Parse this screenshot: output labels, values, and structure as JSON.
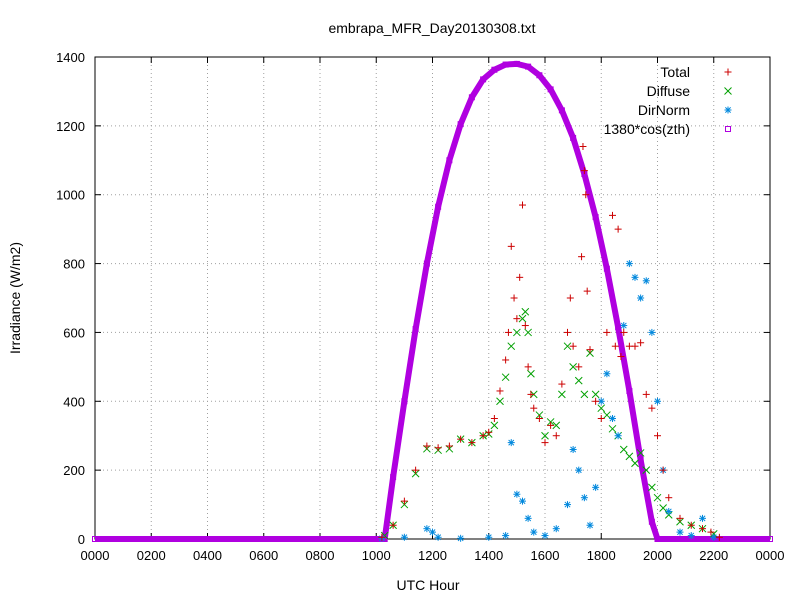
{
  "chart_data": {
    "type": "scatter",
    "title": "embrapa_MFR_Day20130308.txt",
    "xlabel": "UTC Hour",
    "ylabel": "Irradiance (W/m2)",
    "xlim": [
      0,
      24
    ],
    "ylim": [
      0,
      1400
    ],
    "x_tick_values": [
      0,
      2,
      4,
      6,
      8,
      10,
      12,
      14,
      16,
      18,
      20,
      22,
      24
    ],
    "x_tick_labels": [
      "0000",
      "0200",
      "0400",
      "0600",
      "0800",
      "1000",
      "1200",
      "1400",
      "1600",
      "1800",
      "2000",
      "2200",
      "0000"
    ],
    "y_tick_values": [
      0,
      200,
      400,
      600,
      800,
      1000,
      1200,
      1400
    ],
    "y_tick_labels": [
      "0",
      "200",
      "400",
      "600",
      "800",
      "1000",
      "1200",
      "1400"
    ],
    "grid": true,
    "legend_position": "top-right",
    "series": [
      {
        "name": "Total",
        "color": "#cc0000",
        "marker": "plus",
        "points": [
          [
            10.2,
            5
          ],
          [
            10.6,
            40
          ],
          [
            11.0,
            110
          ],
          [
            11.4,
            200
          ],
          [
            11.8,
            270
          ],
          [
            12.2,
            265
          ],
          [
            12.6,
            270
          ],
          [
            13.0,
            290
          ],
          [
            13.4,
            280
          ],
          [
            13.8,
            300
          ],
          [
            14.0,
            310
          ],
          [
            14.2,
            350
          ],
          [
            14.4,
            430
          ],
          [
            14.6,
            520
          ],
          [
            14.7,
            600
          ],
          [
            14.8,
            850
          ],
          [
            14.9,
            700
          ],
          [
            15.0,
            640
          ],
          [
            15.1,
            760
          ],
          [
            15.2,
            970
          ],
          [
            15.3,
            620
          ],
          [
            15.4,
            500
          ],
          [
            15.5,
            420
          ],
          [
            15.6,
            380
          ],
          [
            15.8,
            350
          ],
          [
            16.0,
            280
          ],
          [
            16.2,
            330
          ],
          [
            16.4,
            300
          ],
          [
            16.6,
            450
          ],
          [
            16.8,
            600
          ],
          [
            16.9,
            700
          ],
          [
            17.0,
            560
          ],
          [
            17.2,
            500
          ],
          [
            17.3,
            820
          ],
          [
            17.35,
            1140
          ],
          [
            17.4,
            1070
          ],
          [
            17.45,
            1000
          ],
          [
            17.5,
            720
          ],
          [
            17.6,
            550
          ],
          [
            17.8,
            400
          ],
          [
            18.0,
            350
          ],
          [
            18.2,
            600
          ],
          [
            18.4,
            940
          ],
          [
            18.5,
            560
          ],
          [
            18.6,
            900
          ],
          [
            18.7,
            530
          ],
          [
            18.8,
            600
          ],
          [
            19.0,
            560
          ],
          [
            19.2,
            560
          ],
          [
            19.4,
            570
          ],
          [
            19.6,
            420
          ],
          [
            19.8,
            380
          ],
          [
            20.0,
            300
          ],
          [
            20.2,
            200
          ],
          [
            20.4,
            120
          ],
          [
            20.8,
            60
          ],
          [
            21.2,
            40
          ],
          [
            21.6,
            30
          ],
          [
            21.9,
            20
          ],
          [
            22.2,
            5
          ]
        ]
      },
      {
        "name": "Diffuse",
        "color": "#00a000",
        "marker": "cross",
        "points": [
          [
            10.3,
            10
          ],
          [
            10.6,
            40
          ],
          [
            11.0,
            100
          ],
          [
            11.4,
            190
          ],
          [
            11.8,
            262
          ],
          [
            12.2,
            258
          ],
          [
            12.6,
            262
          ],
          [
            13.0,
            290
          ],
          [
            13.4,
            280
          ],
          [
            13.8,
            300
          ],
          [
            14.0,
            305
          ],
          [
            14.2,
            330
          ],
          [
            14.4,
            400
          ],
          [
            14.6,
            470
          ],
          [
            14.8,
            560
          ],
          [
            15.0,
            600
          ],
          [
            15.2,
            640
          ],
          [
            15.3,
            660
          ],
          [
            15.4,
            600
          ],
          [
            15.5,
            480
          ],
          [
            15.6,
            420
          ],
          [
            15.8,
            360
          ],
          [
            16.0,
            300
          ],
          [
            16.2,
            340
          ],
          [
            16.4,
            330
          ],
          [
            16.6,
            420
          ],
          [
            16.8,
            560
          ],
          [
            17.0,
            500
          ],
          [
            17.2,
            460
          ],
          [
            17.4,
            420
          ],
          [
            17.6,
            540
          ],
          [
            17.8,
            420
          ],
          [
            18.0,
            380
          ],
          [
            18.2,
            360
          ],
          [
            18.4,
            320
          ],
          [
            18.6,
            300
          ],
          [
            18.8,
            260
          ],
          [
            19.0,
            240
          ],
          [
            19.2,
            220
          ],
          [
            19.4,
            250
          ],
          [
            19.6,
            200
          ],
          [
            19.8,
            150
          ],
          [
            20.0,
            120
          ],
          [
            20.2,
            90
          ],
          [
            20.4,
            70
          ],
          [
            20.8,
            50
          ],
          [
            21.2,
            40
          ],
          [
            21.6,
            30
          ],
          [
            22.0,
            15
          ]
        ]
      },
      {
        "name": "DirNorm",
        "color": "#0088dd",
        "marker": "star",
        "points": [
          [
            10.2,
            2
          ],
          [
            11.0,
            5
          ],
          [
            11.8,
            30
          ],
          [
            12.0,
            20
          ],
          [
            12.2,
            5
          ],
          [
            13.0,
            2
          ],
          [
            14.0,
            5
          ],
          [
            14.6,
            10
          ],
          [
            14.8,
            280
          ],
          [
            15.0,
            130
          ],
          [
            15.2,
            110
          ],
          [
            15.4,
            60
          ],
          [
            15.6,
            20
          ],
          [
            16.0,
            10
          ],
          [
            16.4,
            30
          ],
          [
            16.8,
            100
          ],
          [
            17.0,
            260
          ],
          [
            17.2,
            200
          ],
          [
            17.4,
            120
          ],
          [
            17.6,
            40
          ],
          [
            17.8,
            150
          ],
          [
            18.0,
            400
          ],
          [
            18.2,
            480
          ],
          [
            18.4,
            350
          ],
          [
            18.6,
            300
          ],
          [
            18.8,
            620
          ],
          [
            19.0,
            800
          ],
          [
            19.2,
            760
          ],
          [
            19.4,
            700
          ],
          [
            19.6,
            750
          ],
          [
            19.8,
            600
          ],
          [
            20.0,
            400
          ],
          [
            20.2,
            200
          ],
          [
            20.4,
            80
          ],
          [
            20.8,
            20
          ],
          [
            21.2,
            10
          ],
          [
            21.6,
            60
          ],
          [
            22.0,
            5
          ]
        ]
      },
      {
        "name": "1380*cos(zth)",
        "color": "#b000e0",
        "marker": "square",
        "points": [
          [
            0.0,
            0
          ],
          [
            1.0,
            0
          ],
          [
            2.0,
            0
          ],
          [
            3.0,
            0
          ],
          [
            4.0,
            0
          ],
          [
            5.0,
            0
          ],
          [
            6.0,
            0
          ],
          [
            7.0,
            0
          ],
          [
            8.0,
            0
          ],
          [
            9.0,
            0
          ],
          [
            10.0,
            0
          ],
          [
            10.3,
            0
          ],
          [
            10.6,
            180
          ],
          [
            11.0,
            400
          ],
          [
            11.4,
            610
          ],
          [
            11.8,
            800
          ],
          [
            12.2,
            965
          ],
          [
            12.6,
            1100
          ],
          [
            13.0,
            1205
          ],
          [
            13.4,
            1283
          ],
          [
            13.8,
            1335
          ],
          [
            14.2,
            1363
          ],
          [
            14.6,
            1378
          ],
          [
            15.0,
            1380
          ],
          [
            15.4,
            1372
          ],
          [
            15.8,
            1347
          ],
          [
            16.2,
            1306
          ],
          [
            16.6,
            1245
          ],
          [
            17.0,
            1165
          ],
          [
            17.4,
            1060
          ],
          [
            17.8,
            935
          ],
          [
            18.2,
            785
          ],
          [
            18.6,
            615
          ],
          [
            19.0,
            430
          ],
          [
            19.4,
            230
          ],
          [
            19.8,
            50
          ],
          [
            20.0,
            0
          ],
          [
            21.0,
            0
          ],
          [
            22.0,
            0
          ],
          [
            23.0,
            0
          ],
          [
            24.0,
            0
          ]
        ]
      }
    ]
  }
}
